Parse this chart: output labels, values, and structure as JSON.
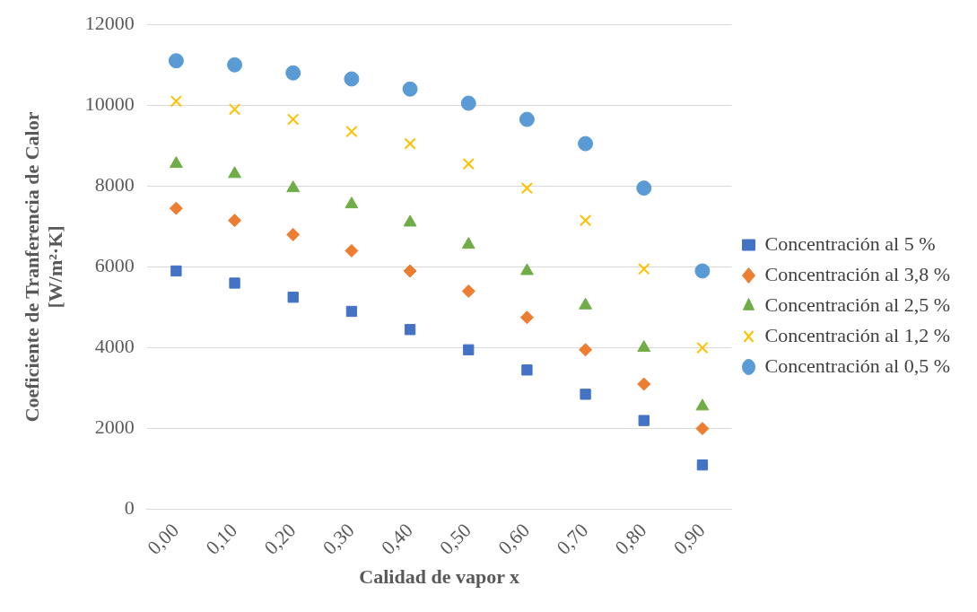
{
  "chart_data": {
    "type": "scatter",
    "xlabel": "Calidad de vapor x",
    "ylabel": "Coeficiente de Tranferencia de Calor\n[W/m²·K]",
    "categories": [
      "0,00",
      "0,10",
      "0,20",
      "0,30",
      "0,40",
      "0,50",
      "0,60",
      "0,70",
      "0,80",
      "0,90"
    ],
    "ylim": [
      0,
      12000
    ],
    "yticks": [
      0,
      2000,
      4000,
      6000,
      8000,
      10000,
      12000
    ],
    "grid": "y",
    "legend": "right",
    "series": [
      {
        "name": "Concentración al 5 %",
        "color": "#4472c4",
        "marker": "square",
        "values": [
          5900,
          5600,
          5250,
          4900,
          4450,
          3950,
          3450,
          2850,
          2200,
          1100
        ]
      },
      {
        "name": "Concentración al 3,8 %",
        "color": "#ed7d31",
        "marker": "diamond",
        "values": [
          7450,
          7150,
          6800,
          6400,
          5900,
          5400,
          4750,
          3950,
          3100,
          2000
        ]
      },
      {
        "name": "Concentración al 2,5 %",
        "color": "#70ad47",
        "marker": "triangle",
        "values": [
          8550,
          8300,
          7950,
          7550,
          7100,
          6550,
          5900,
          5050,
          4000,
          2550
        ]
      },
      {
        "name": "Concentración al 1,2 %",
        "color": "#ffc000",
        "marker": "cross",
        "values": [
          10100,
          9900,
          9650,
          9350,
          9050,
          8550,
          7950,
          7150,
          5950,
          4000
        ]
      },
      {
        "name": "Concentración al 0,5 %",
        "color": "#5b9bd5",
        "marker": "circle",
        "values": [
          11100,
          11000,
          10800,
          10650,
          10400,
          10050,
          9650,
          9050,
          7950,
          5900
        ]
      }
    ]
  }
}
